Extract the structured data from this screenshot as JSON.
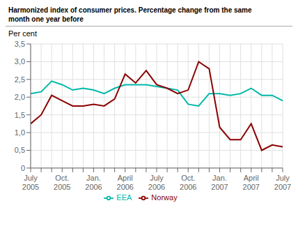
{
  "chart_data": {
    "type": "line",
    "title": "Harmonized index of consumer prices. Percentage change from the same\nmonth one year before",
    "y_label": "Per cent",
    "categories": [
      "July\n2005",
      null,
      null,
      "Oct.\n2005",
      null,
      null,
      "Jan.\n2006",
      null,
      null,
      "April\n2006",
      null,
      null,
      "July\n2006",
      null,
      null,
      "Oct.\n2006",
      null,
      null,
      "Jan.\n2007",
      null,
      null,
      "April\n2007",
      null,
      null,
      "July\n2007"
    ],
    "series": [
      {
        "name": "EEA",
        "color": "#00b8a9",
        "values": [
          2.1,
          2.15,
          2.45,
          2.35,
          2.2,
          2.25,
          2.2,
          2.1,
          2.25,
          2.35,
          2.35,
          2.35,
          2.3,
          2.25,
          2.2,
          1.8,
          1.75,
          2.1,
          2.1,
          2.05,
          2.1,
          2.25,
          2.05,
          2.05,
          1.9
        ]
      },
      {
        "name": "Norway",
        "color": "#8b0000",
        "values": [
          1.25,
          1.5,
          2.05,
          1.9,
          1.75,
          1.75,
          1.8,
          1.75,
          1.95,
          2.65,
          2.4,
          2.75,
          2.35,
          2.25,
          2.1,
          2.2,
          3.0,
          2.8,
          1.15,
          0.8,
          0.8,
          1.25,
          0.5,
          0.65,
          0.6
        ]
      }
    ],
    "ylim": [
      0,
      3.5
    ],
    "yticks": [
      0,
      {
        "value": 0.5,
        "label": "0,5"
      },
      {
        "value": 1,
        "label": "1,0"
      },
      {
        "value": 1.5,
        "label": "1,5"
      },
      {
        "value": 2,
        "label": "2,0"
      },
      {
        "value": 2.5,
        "label": "2,5"
      },
      {
        "value": 3,
        "label": "3,0"
      },
      {
        "value": 3.5,
        "label": "3,5"
      }
    ],
    "grid": true,
    "legend": "bottom"
  }
}
